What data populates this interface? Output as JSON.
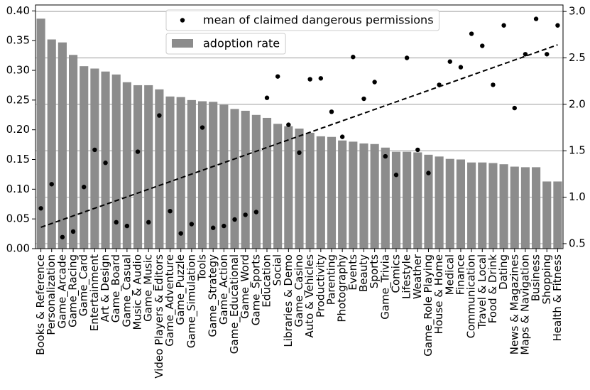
{
  "chart_data": {
    "type": "bar",
    "categories": [
      "Books & Reference",
      "Personalization",
      "Game_Arcade",
      "Game_Racing",
      "Game_Card",
      "Entertainment",
      "Art & Design",
      "Game_Board",
      "Game_Casual",
      "Music & Audio",
      "Game_Music",
      "Video Players & Editors",
      "Game_Adventure",
      "Game_Puzzle",
      "Game_Simulation",
      "Tools",
      "Game_Strategy",
      "Game_Action",
      "Game_Educational",
      "Game_Word",
      "Game_Sports",
      "Education",
      "Social",
      "Libraries & Demo",
      "Game_Casino",
      "Auto & Vehicles",
      "Productivity",
      "Parenting",
      "Photography",
      "Events",
      "Beauty",
      "Sports",
      "Game_Trivia",
      "Comics",
      "Lifestyle",
      "Weather",
      "Game_Role Playing",
      "House & Home",
      "Medical",
      "Finance",
      "Communication",
      "Travel & Local",
      "Food & Drink",
      "Dating",
      "News & Magazines",
      "Maps & Navigation",
      "Business",
      "Shopping",
      "Health & Fitness"
    ],
    "series": [
      {
        "name": "mean of claimed dangerous permissions",
        "type": "scatter",
        "axis": "y2",
        "color": "#000000",
        "values": [
          0.88,
          1.14,
          0.57,
          0.63,
          1.11,
          1.51,
          1.37,
          0.73,
          0.69,
          1.49,
          0.73,
          1.88,
          0.85,
          0.61,
          0.71,
          1.75,
          0.67,
          0.69,
          0.76,
          0.81,
          0.84,
          2.07,
          2.3,
          1.78,
          1.48,
          2.27,
          2.28,
          1.92,
          1.65,
          2.51,
          2.06,
          2.24,
          1.44,
          1.24,
          2.5,
          1.51,
          1.26,
          2.21,
          2.46,
          2.4,
          2.76,
          2.63,
          2.21,
          2.85,
          1.96,
          2.54,
          2.92,
          2.54,
          2.85
        ]
      },
      {
        "name": "adoption rate",
        "type": "bar",
        "color": "#8c8c8c",
        "values": [
          0.387,
          0.352,
          0.347,
          0.326,
          0.307,
          0.303,
          0.298,
          0.293,
          0.28,
          0.275,
          0.275,
          0.268,
          0.256,
          0.255,
          0.25,
          0.248,
          0.247,
          0.242,
          0.235,
          0.232,
          0.225,
          0.22,
          0.21,
          0.206,
          0.202,
          0.195,
          0.189,
          0.188,
          0.182,
          0.18,
          0.177,
          0.176,
          0.17,
          0.163,
          0.163,
          0.162,
          0.158,
          0.155,
          0.151,
          0.15,
          0.145,
          0.145,
          0.144,
          0.142,
          0.138,
          0.137,
          0.137,
          0.113,
          0.113
        ]
      }
    ],
    "ylim": [
      0,
      0.41
    ],
    "yticks": [
      {
        "value": 0,
        "label": "0.00"
      },
      {
        "value": 0.05,
        "label": "0.05"
      },
      {
        "value": 0.1,
        "label": "0.10"
      },
      {
        "value": 0.15,
        "label": "0.15"
      },
      {
        "value": 0.2,
        "label": "0.20"
      },
      {
        "value": 0.25,
        "label": "0.25"
      },
      {
        "value": 0.3,
        "label": "0.30"
      },
      {
        "value": 0.35,
        "label": "0.35"
      },
      {
        "value": 0.4,
        "label": "0.40"
      }
    ],
    "y2lim": [
      0.446,
      3.07
    ],
    "y2ticks": [
      {
        "value": 0.5,
        "label": "0.5"
      },
      {
        "value": 1,
        "label": "1.0"
      },
      {
        "value": 1.5,
        "label": "1.5"
      },
      {
        "value": 2,
        "label": "2.0"
      },
      {
        "value": 2.5,
        "label": "2.5"
      },
      {
        "value": 3,
        "label": "3.0"
      }
    ],
    "grid": "y2",
    "trendline": "dashed"
  }
}
